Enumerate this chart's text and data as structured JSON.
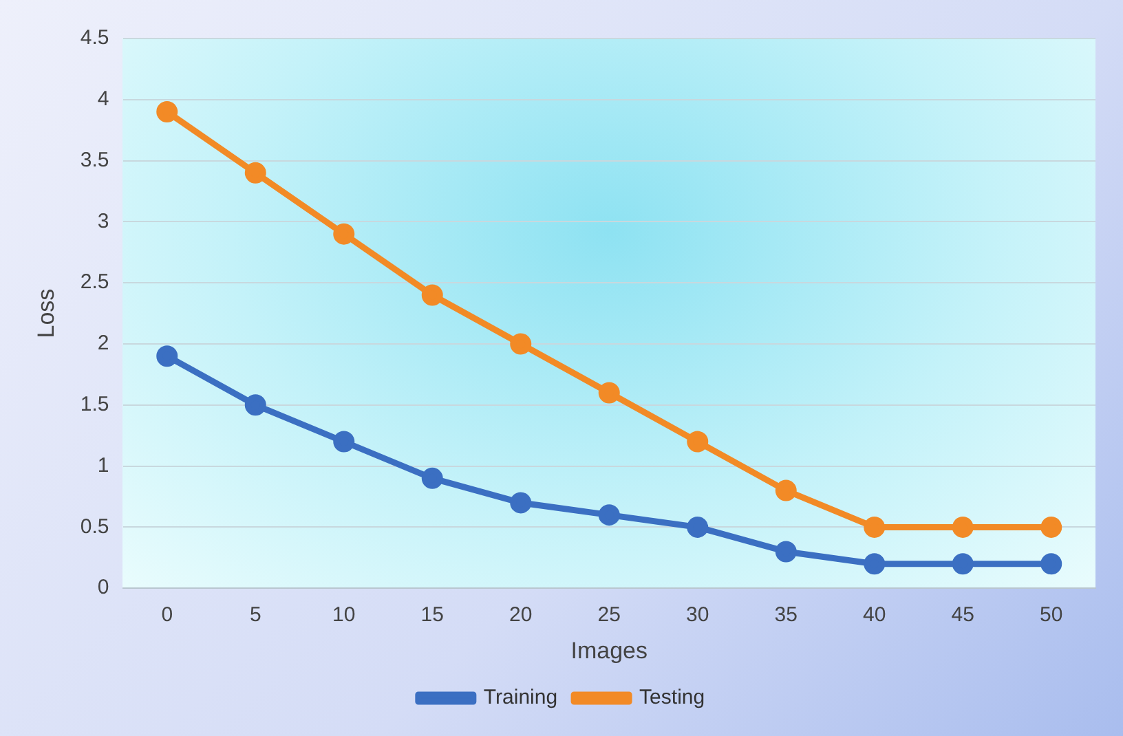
{
  "chart_data": {
    "type": "line",
    "xlabel": "Images",
    "ylabel": "Loss",
    "categories": [
      "0",
      "5",
      "10",
      "15",
      "20",
      "25",
      "30",
      "35",
      "40",
      "45",
      "50"
    ],
    "series": [
      {
        "name": "Training",
        "color": "#3b6fc2",
        "values": [
          1.9,
          1.5,
          1.2,
          0.9,
          0.7,
          0.6,
          0.5,
          0.3,
          0.2,
          0.2,
          0.2
        ]
      },
      {
        "name": "Testing",
        "color": "#f28a26",
        "values": [
          3.9,
          3.4,
          2.9,
          2.4,
          2.0,
          1.6,
          1.2,
          0.8,
          0.5,
          0.5,
          0.5
        ]
      }
    ],
    "ylim": [
      0,
      4.5
    ],
    "yticks": [
      0,
      0.5,
      1,
      1.5,
      2,
      2.5,
      3,
      3.5,
      4,
      4.5
    ],
    "grid": "y",
    "legend": "bottom",
    "marker": "circle",
    "line_style": "solid"
  }
}
